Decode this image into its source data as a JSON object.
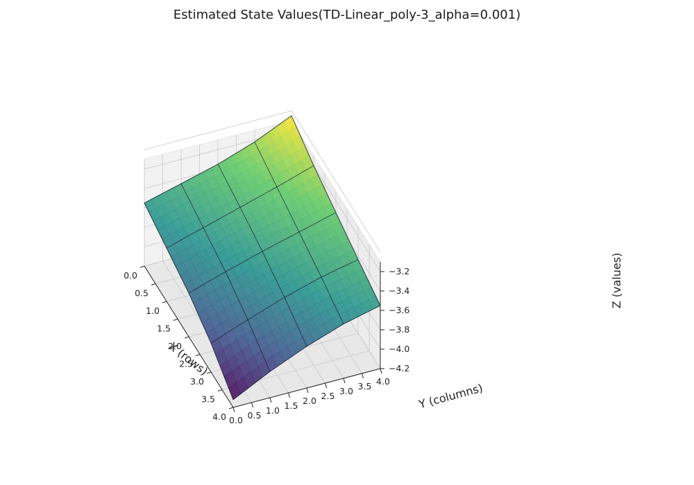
{
  "chart_data": {
    "type": "surface",
    "title": "Estimated State Values(TD-Linear_poly-3_alpha=0.001)",
    "xlabel": "X (rows)",
    "ylabel": "Y (columns)",
    "zlabel": "Z (values)",
    "x_ticks": [
      "0.0",
      "0.5",
      "1.0",
      "1.5",
      "2.0",
      "2.5",
      "3.0",
      "3.5",
      "4.0"
    ],
    "y_ticks": [
      "0.0",
      "0.5",
      "1.0",
      "1.5",
      "2.0",
      "2.5",
      "3.0",
      "3.5",
      "4.0"
    ],
    "z_ticks": [
      "−4.2",
      "−4.0",
      "−3.8",
      "−3.6",
      "−3.4",
      "−3.2"
    ],
    "xlim": [
      0,
      4
    ],
    "ylim": [
      0,
      4
    ],
    "zlim": [
      -4.2,
      -3.1
    ],
    "colormap": "viridis",
    "colormap_stops": [
      "#440154",
      "#3b528b",
      "#21918c",
      "#5ec962",
      "#fde725"
    ],
    "grid": true,
    "x": [
      0,
      1,
      2,
      3,
      4
    ],
    "y": [
      0,
      1,
      2,
      3,
      4
    ],
    "z": [
      [
        -3.55,
        -3.45,
        -3.35,
        -3.22,
        -3.05
      ],
      [
        -3.65,
        -3.54,
        -3.43,
        -3.32,
        -3.2
      ],
      [
        -3.75,
        -3.63,
        -3.52,
        -3.42,
        -3.32
      ],
      [
        -3.9,
        -3.76,
        -3.63,
        -3.52,
        -3.44
      ],
      [
        -4.12,
        -3.93,
        -3.77,
        -3.64,
        -3.55
      ]
    ]
  }
}
